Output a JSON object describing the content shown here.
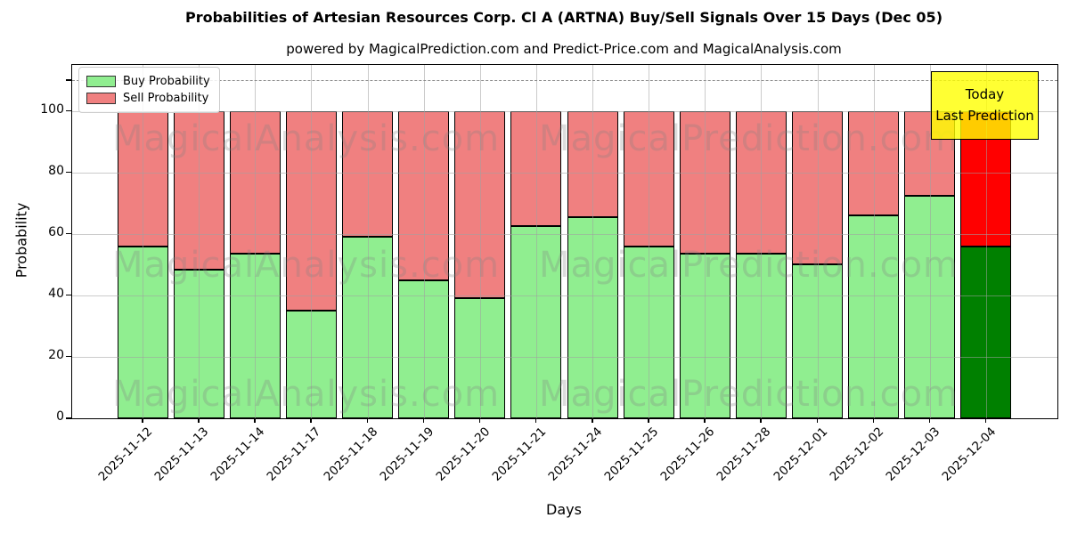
{
  "header": {
    "title": "Probabilities of Artesian Resources Corp. Cl A (ARTNA) Buy/Sell Signals Over 15 Days (Dec 05)",
    "subtitle": "powered by MagicalPrediction.com and Predict-Price.com and MagicalAnalysis.com"
  },
  "axes": {
    "xlabel": "Days",
    "ylabel": "Probability",
    "yticks": [
      0,
      20,
      40,
      60,
      80,
      100
    ],
    "ylim": [
      0,
      115
    ],
    "threshold_line_y": 110,
    "grid": "on"
  },
  "legend": {
    "position": "upper-left",
    "items": [
      {
        "label": "Buy Probability",
        "color": "#90EE90"
      },
      {
        "label": "Sell Probability",
        "color": "#F08080"
      }
    ]
  },
  "annotation": {
    "lines": [
      "Today",
      "Last Prediction"
    ],
    "bg_color": "#FFFF00",
    "border_color": "#000000"
  },
  "watermarks": [
    "MagicalAnalysis.com",
    "MagicalPrediction.com"
  ],
  "colors": {
    "buy": "#90EE90",
    "sell": "#F08080",
    "buy_highlight": "#008000",
    "sell_highlight": "#FF0000",
    "bar_edge": "#000000"
  },
  "chart_data": {
    "type": "bar",
    "stacked": true,
    "title": "Probabilities of Artesian Resources Corp. Cl A (ARTNA) Buy/Sell Signals Over 15 Days (Dec 05)",
    "xlabel": "Days",
    "ylabel": "Probability",
    "ylim": [
      0,
      115
    ],
    "legend_position": "upper-left",
    "categories": [
      "2025-11-12",
      "2025-11-13",
      "2025-11-14",
      "2025-11-17",
      "2025-11-18",
      "2025-11-19",
      "2025-11-20",
      "2025-11-21",
      "2025-11-24",
      "2025-11-25",
      "2025-11-26",
      "2025-11-28",
      "2025-12-01",
      "2025-12-02",
      "2025-12-03",
      "2025-12-04"
    ],
    "series": [
      {
        "name": "Buy Probability",
        "values": [
          56,
          48.5,
          53.5,
          35,
          59,
          45,
          39,
          62.5,
          65.5,
          56,
          53.5,
          53.5,
          50,
          66,
          72.5,
          56
        ]
      },
      {
        "name": "Sell Probability",
        "values": [
          44,
          51.5,
          46.5,
          65,
          41,
          55,
          61,
          37.5,
          34.5,
          44,
          46.5,
          46.5,
          50,
          34,
          27.5,
          44
        ]
      }
    ],
    "highlighted_bar": "2025-12-04"
  }
}
